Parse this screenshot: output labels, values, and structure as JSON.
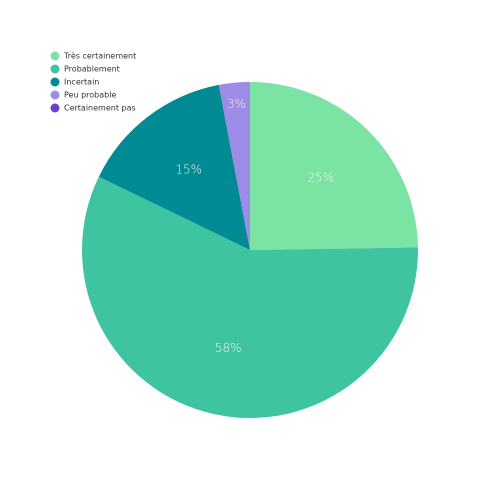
{
  "chart_data": {
    "type": "pie",
    "categories": [
      "Très certainement",
      "Probablement",
      "Incertain",
      "Peu probable",
      "Certainement pas"
    ],
    "values": [
      25,
      58,
      15,
      3,
      0
    ],
    "value_labels": [
      "25%",
      "58%",
      "15%",
      "3%",
      null
    ],
    "colors": [
      "#7be3a4",
      "#3fc4a1",
      "#008b94",
      "#9e8be8",
      "#6a3fc9"
    ],
    "legend": "top-left"
  }
}
